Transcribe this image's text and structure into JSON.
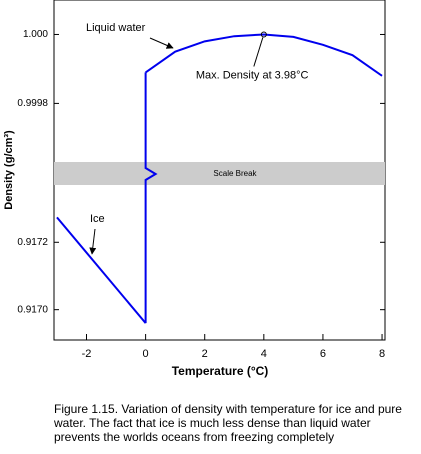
{
  "chart_data": {
    "type": "line",
    "x_label": "Temperature (°C)",
    "y_label": "Density (g/cm³)",
    "xlim": [
      -3.1,
      8.1
    ],
    "xticks": [
      -2,
      0,
      2,
      4,
      6,
      8
    ],
    "panels": [
      {
        "ylim": [
          0.99963,
          1.0001
        ],
        "yticks": [
          0.9998,
          {
            "value": 1.0,
            "label": "1.000"
          }
        ]
      },
      {
        "ylim": [
          0.91691,
          0.91737
        ],
        "yticks": [
          {
            "value": 0.917,
            "label": "0.9170"
          },
          0.9172
        ]
      }
    ],
    "scale_break_label": "Scale Break",
    "series": [
      {
        "name": "Liquid water",
        "color": "#0000ee",
        "panel": 0,
        "x": [
          0,
          1,
          2,
          3,
          4,
          5,
          6,
          7,
          8
        ],
        "values": [
          0.99989,
          0.99995,
          0.99998,
          0.999995,
          1.0,
          0.999993,
          0.99997,
          0.99994,
          0.99988
        ]
      },
      {
        "name": "Ice",
        "color": "#0000ee",
        "panel": 1,
        "x": [
          -3,
          0
        ],
        "values": [
          0.917274,
          0.91696
        ]
      }
    ],
    "annotations": [
      {
        "text": "Max. Density at 3.98°C",
        "x": 4,
        "y": 1.0,
        "panel": 0
      }
    ]
  },
  "caption": "Figure 1.15.  Variation of density with temperature for ice and pure water.  The fact that ice is much less dense than liquid water prevents the worlds oceans from freezing completely"
}
